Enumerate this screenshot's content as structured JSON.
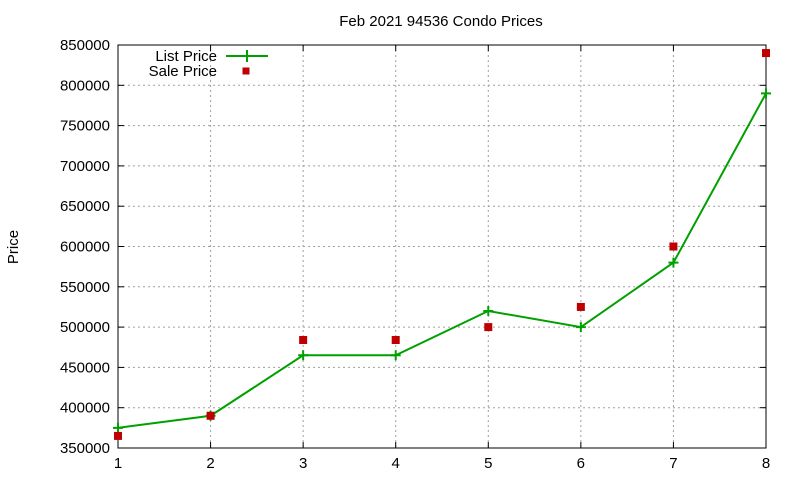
{
  "chart_data": {
    "type": "line",
    "title": "Feb 2021 94536 Condo Prices",
    "xlabel": "",
    "ylabel": "Price",
    "x": [
      1,
      2,
      3,
      4,
      5,
      6,
      7,
      8
    ],
    "xlim": [
      1,
      8
    ],
    "ylim": [
      350000,
      850000
    ],
    "xticks": [
      "1",
      "2",
      "3",
      "4",
      "5",
      "6",
      "7",
      "8"
    ],
    "yticks": [
      "350000",
      "400000",
      "450000",
      "500000",
      "550000",
      "600000",
      "650000",
      "700000",
      "750000",
      "800000",
      "850000"
    ],
    "grid": true,
    "legend_position": "top-left",
    "series": [
      {
        "name": "List Price",
        "style": "line-with-plus-markers",
        "color": "#00a000",
        "values": [
          375000,
          390000,
          465000,
          465000,
          520000,
          500000,
          580000,
          790000
        ]
      },
      {
        "name": "Sale Price",
        "style": "square-markers",
        "color": "#c00000",
        "values": [
          365000,
          390000,
          484000,
          484000,
          500000,
          525000,
          600000,
          840000
        ]
      }
    ]
  }
}
